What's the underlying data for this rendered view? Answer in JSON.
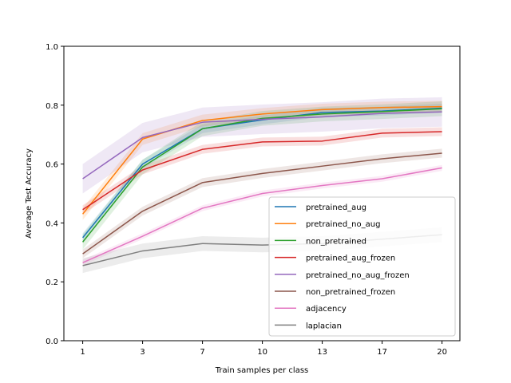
{
  "chart_data": {
    "type": "line",
    "title": "",
    "xlabel": "Train samples per class",
    "ylabel": "Average Test Accuracy",
    "x": [
      1,
      3,
      7,
      10,
      13,
      17,
      20
    ],
    "xticks": [
      "1",
      "3",
      "7",
      "10",
      "13",
      "17",
      "20"
    ],
    "ylim": [
      0.0,
      1.0
    ],
    "yticks": [
      "0.0",
      "0.2",
      "0.4",
      "0.6",
      "0.8",
      "1.0"
    ],
    "grid": false,
    "legend_position": "lower-right",
    "series": [
      {
        "name": "pretrained_aug",
        "color": "#1f77b4",
        "band": 0.015,
        "values": [
          0.35,
          0.6,
          0.72,
          0.75,
          0.775,
          0.78,
          0.79
        ]
      },
      {
        "name": "pretrained_no_aug",
        "color": "#ff7f0e",
        "band": 0.02,
        "values": [
          0.43,
          0.685,
          0.748,
          0.77,
          0.785,
          0.792,
          0.795
        ]
      },
      {
        "name": "non_pretrained",
        "color": "#2ca02c",
        "band": 0.025,
        "values": [
          0.335,
          0.59,
          0.72,
          0.755,
          0.77,
          0.778,
          0.788
        ]
      },
      {
        "name": "pretrained_aug_frozen",
        "color": "#d62728",
        "band": 0.015,
        "values": [
          0.445,
          0.58,
          0.65,
          0.675,
          0.678,
          0.705,
          0.71
        ]
      },
      {
        "name": "pretrained_no_aug_frozen",
        "color": "#9467bd",
        "band": 0.05,
        "values": [
          0.55,
          0.69,
          0.742,
          0.752,
          0.76,
          0.772,
          0.777
        ]
      },
      {
        "name": "non_pretrained_frozen",
        "color": "#8c564b",
        "band": 0.015,
        "values": [
          0.295,
          0.44,
          0.537,
          0.568,
          0.593,
          0.618,
          0.637
        ]
      },
      {
        "name": "adjacency",
        "color": "#e377c2",
        "band": 0.01,
        "values": [
          0.265,
          0.355,
          0.45,
          0.5,
          0.527,
          0.55,
          0.587
        ]
      },
      {
        "name": "laplacian",
        "color": "#7f7f7f",
        "band": 0.025,
        "values": [
          0.255,
          0.305,
          0.33,
          0.325,
          0.33,
          0.345,
          0.36
        ]
      }
    ]
  }
}
